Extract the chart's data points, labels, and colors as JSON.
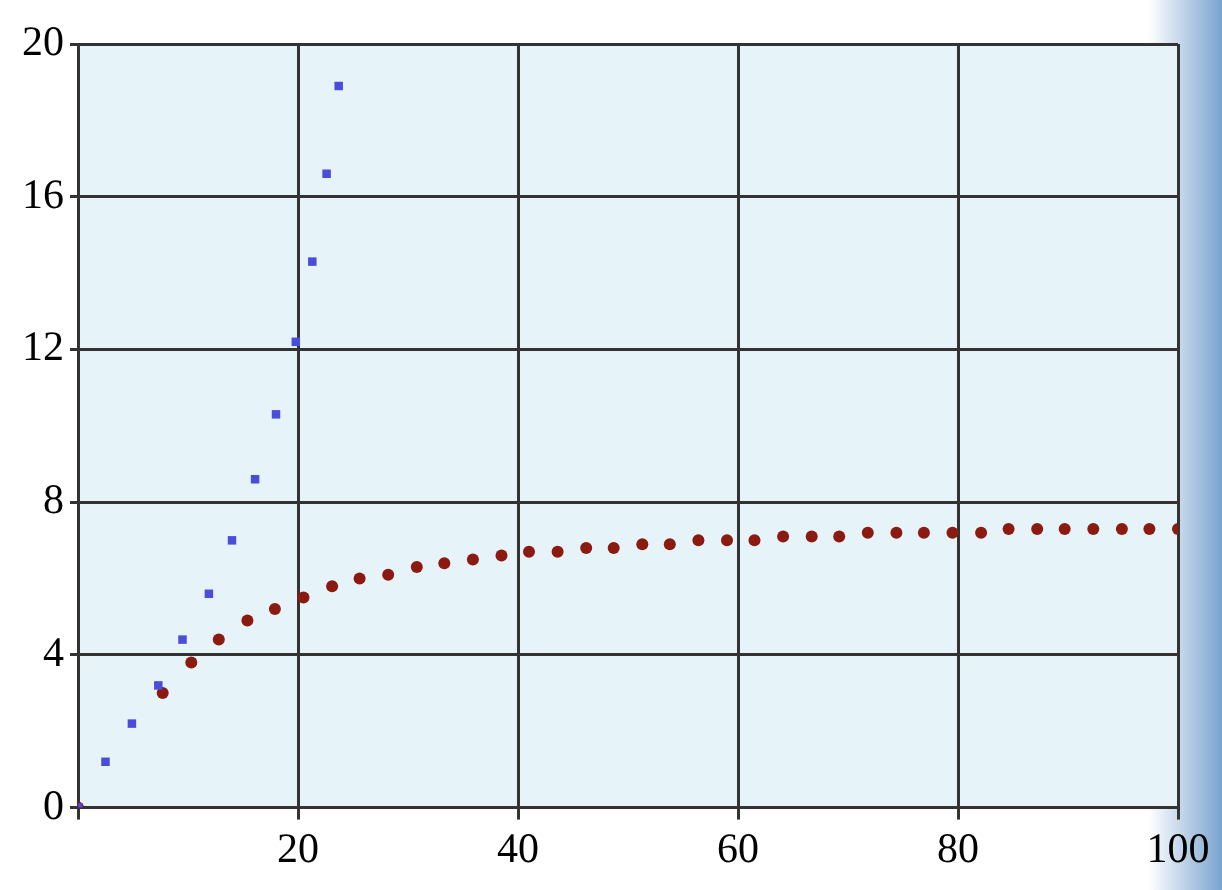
{
  "chart_data": {
    "type": "scatter",
    "xlim": [
      0,
      100
    ],
    "xticks": [
      {
        "value": 0,
        "label": null
      },
      20,
      40,
      60,
      80,
      100
    ],
    "ylim": [
      0,
      20
    ],
    "yticks": [
      0,
      4,
      8,
      12,
      16,
      20
    ],
    "grid": true,
    "series": [
      {
        "color": "#4b4bdc",
        "marker": "square",
        "x": [
          0,
          2.5,
          4.9,
          7.3,
          9.5,
          11.9,
          14.0,
          16.1,
          18.0,
          19.8,
          21.3,
          22.6,
          23.7
        ],
        "values": [
          0,
          1.2,
          2.2,
          3.2,
          4.4,
          5.6,
          7.0,
          8.6,
          10.3,
          12.2,
          14.3,
          16.6,
          18.9
        ]
      },
      {
        "color": "#8b1a10",
        "marker": "circle",
        "x": [
          0,
          2.6,
          5.1,
          7.7,
          10.3,
          12.8,
          15.4,
          17.9,
          20.5,
          23.1,
          25.6,
          28.2,
          30.8,
          33.3,
          35.9,
          38.5,
          41,
          43.6,
          46.2,
          48.7,
          51.3,
          53.8,
          56.4,
          59,
          61.5,
          64.1,
          66.7,
          69.2,
          71.8,
          74.4,
          76.9,
          79.5,
          82.1,
          84.6,
          87.2,
          89.7,
          92.3,
          94.9,
          97.4,
          100
        ],
        "values": [
          0,
          null,
          null,
          3.0,
          3.8,
          4.4,
          4.9,
          5.2,
          5.5,
          5.8,
          6.0,
          6.1,
          6.3,
          6.4,
          6.5,
          6.6,
          6.7,
          6.7,
          6.8,
          6.8,
          6.9,
          6.9,
          7.0,
          7.0,
          7.0,
          7.1,
          7.1,
          7.1,
          7.2,
          7.2,
          7.2,
          7.2,
          7.2,
          7.3,
          7.3,
          7.3,
          7.3,
          7.3,
          7.3,
          7.3
        ]
      }
    ]
  }
}
